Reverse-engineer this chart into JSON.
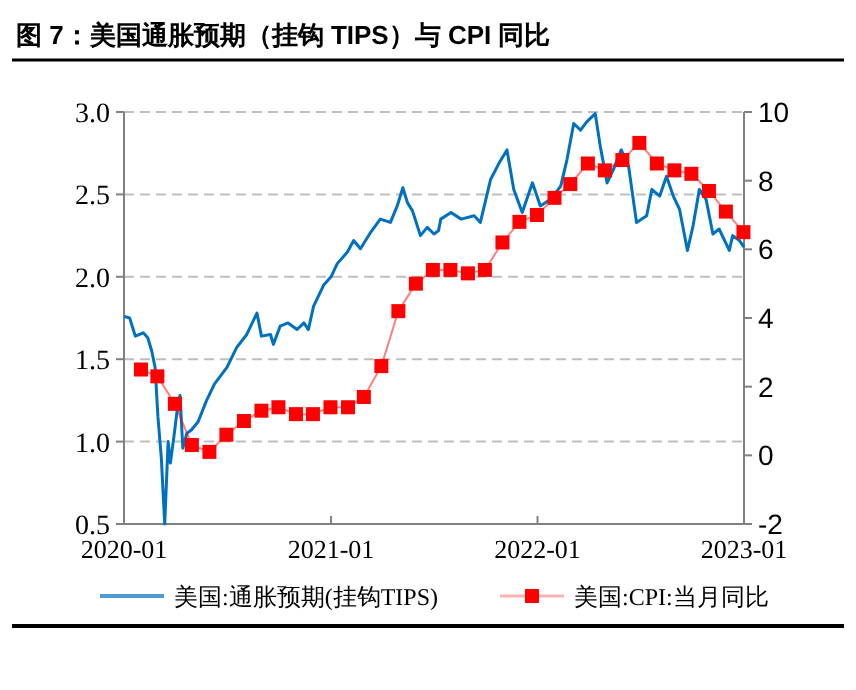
{
  "chart_data": {
    "type": "line",
    "title": "图 7：美国通胀预期（挂钩 TIPS）与 CPI 同比",
    "xlim": [
      "2020-01",
      "2023-01"
    ],
    "xticks": [
      "2020-01",
      "2021-01",
      "2022-01",
      "2023-01"
    ],
    "ylim": [
      0.5,
      3.0
    ],
    "yticks": [
      0.5,
      {
        "value": 1,
        "label": "1.0"
      },
      1.5,
      {
        "value": 2,
        "label": "2.0"
      },
      2.5,
      {
        "value": 3,
        "label": "3.0"
      }
    ],
    "y2lim": [
      -2,
      10
    ],
    "y2ticks": [
      -2,
      0,
      2,
      4,
      6,
      8,
      10
    ],
    "grid": "y",
    "legend": "bottom",
    "series": [
      {
        "name": "美国:通胀预期(挂钩TIPS)",
        "color": "#0070c0",
        "marker": "none",
        "x": [
          "2020-01-01",
          "2020-01-11",
          "2020-01-21",
          "2020-02-04",
          "2020-02-12",
          "2020-02-19",
          "2020-02-25",
          "2020-03-01",
          "2020-03-07",
          "2020-03-13",
          "2020-03-19",
          "2020-03-23",
          "2020-03-30",
          "2020-04-05",
          "2020-04-09",
          "2020-04-14",
          "2020-04-21",
          "2020-04-29",
          "2020-05-11",
          "2020-05-26",
          "2020-06-09",
          "2020-07-01",
          "2020-07-18",
          "2020-08-05",
          "2020-08-23",
          "2020-08-31",
          "2020-09-16",
          "2020-09-21",
          "2020-10-03",
          "2020-10-17",
          "2020-11-02",
          "2020-11-14",
          "2020-11-22",
          "2020-12-01",
          "2020-12-19",
          "2021-01-01",
          "2021-01-12",
          "2021-01-30",
          "2021-02-10",
          "2021-02-22",
          "2021-03-12",
          "2021-03-29",
          "2021-04-16",
          "2021-04-28",
          "2021-05-08",
          "2021-05-16",
          "2021-05-25",
          "2021-06-08",
          "2021-06-20",
          "2021-07-02",
          "2021-07-10",
          "2021-07-14",
          "2021-08-01",
          "2021-08-19",
          "2021-09-11",
          "2021-09-22",
          "2021-10-10",
          "2021-10-25",
          "2021-11-08",
          "2021-11-20",
          "2021-12-05",
          "2021-12-23",
          "2022-01-06",
          "2022-01-24",
          "2022-02-11",
          "2022-02-22",
          "2022-03-06",
          "2022-03-18",
          "2022-03-29",
          "2022-04-13",
          "2022-04-22",
          "2022-05-04",
          "2022-05-15",
          "2022-05-29",
          "2022-06-11",
          "2022-06-25",
          "2022-07-13",
          "2022-07-22",
          "2022-08-05",
          "2022-08-17",
          "2022-08-29",
          "2022-09-09",
          "2022-09-23",
          "2022-10-03",
          "2022-10-14",
          "2022-10-26",
          "2022-11-07",
          "2022-11-18",
          "2022-12-06",
          "2022-12-12",
          "2022-12-24",
          "2023-01-01"
        ],
        "values": [
          1.76,
          1.75,
          1.64,
          1.66,
          1.63,
          1.55,
          1.45,
          1.15,
          0.9,
          0.5,
          1.0,
          0.87,
          1.05,
          1.22,
          1.28,
          0.96,
          1.05,
          1.07,
          1.12,
          1.25,
          1.35,
          1.45,
          1.57,
          1.65,
          1.78,
          1.64,
          1.65,
          1.59,
          1.7,
          1.72,
          1.68,
          1.72,
          1.68,
          1.82,
          1.95,
          2.0,
          2.08,
          2.15,
          2.22,
          2.17,
          2.27,
          2.35,
          2.33,
          2.43,
          2.54,
          2.45,
          2.4,
          2.25,
          2.3,
          2.26,
          2.28,
          2.35,
          2.39,
          2.35,
          2.37,
          2.33,
          2.59,
          2.69,
          2.77,
          2.53,
          2.39,
          2.57,
          2.43,
          2.47,
          2.55,
          2.71,
          2.93,
          2.89,
          2.94,
          2.99,
          2.79,
          2.57,
          2.65,
          2.77,
          2.67,
          2.33,
          2.37,
          2.53,
          2.49,
          2.61,
          2.49,
          2.41,
          2.16,
          2.31,
          2.53,
          2.47,
          2.26,
          2.29,
          2.16,
          2.25,
          2.22,
          2.18
        ]
      },
      {
        "name": "美国:CPI:当月同比",
        "color": "#ff0000",
        "marker": "square",
        "axis": "y2",
        "x": [
          "2020-01-31",
          "2020-02-29",
          "2020-03-31",
          "2020-04-30",
          "2020-05-31",
          "2020-06-30",
          "2020-07-31",
          "2020-08-31",
          "2020-09-30",
          "2020-10-31",
          "2020-11-30",
          "2020-12-31",
          "2021-01-31",
          "2021-02-28",
          "2021-03-31",
          "2021-04-30",
          "2021-05-31",
          "2021-06-30",
          "2021-07-31",
          "2021-08-31",
          "2021-09-30",
          "2021-10-31",
          "2021-11-30",
          "2021-12-31",
          "2022-01-31",
          "2022-02-28",
          "2022-03-31",
          "2022-04-30",
          "2022-05-31",
          "2022-06-30",
          "2022-07-31",
          "2022-08-31",
          "2022-09-30",
          "2022-10-31",
          "2022-11-30",
          "2022-12-31"
        ],
        "values": [
          2.5,
          2.3,
          1.5,
          0.3,
          0.1,
          0.6,
          1.0,
          1.3,
          1.4,
          1.2,
          1.2,
          1.4,
          1.4,
          1.7,
          2.6,
          4.2,
          5.0,
          5.4,
          5.4,
          5.3,
          5.4,
          6.2,
          6.8,
          7.0,
          7.5,
          7.9,
          8.5,
          8.3,
          8.6,
          9.1,
          8.5,
          8.3,
          8.2,
          7.7,
          7.1,
          6.5
        ]
      }
    ]
  }
}
